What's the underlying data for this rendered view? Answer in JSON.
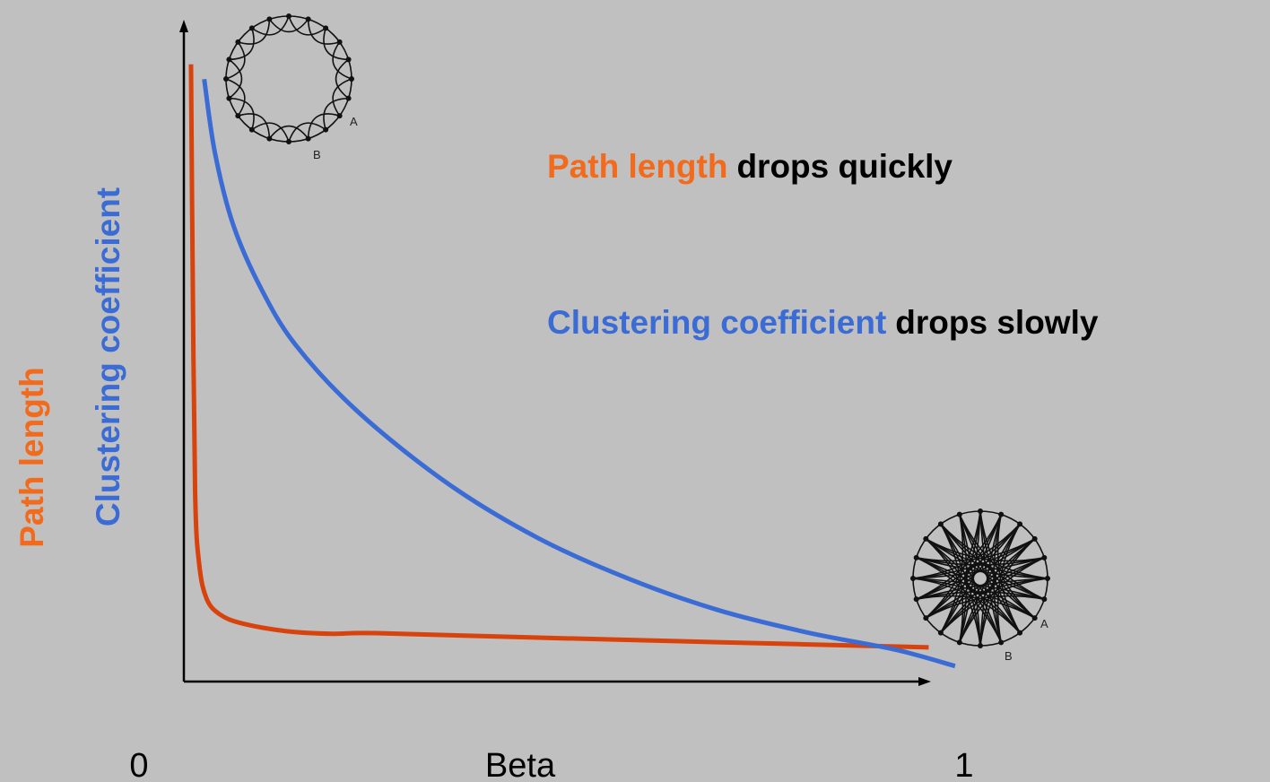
{
  "chart_data": {
    "type": "line",
    "xlabel": "Beta",
    "xlim": [
      0,
      1
    ],
    "xticks": [
      0,
      1
    ],
    "ylim": [
      0,
      1
    ],
    "series": [
      {
        "name": "Path length",
        "color": "#d8420c",
        "label_color": "#f26a1c",
        "x": [
          0.063,
          0.065,
          0.068,
          0.073,
          0.082,
          0.098,
          0.125,
          0.179,
          0.234,
          0.288,
          0.484,
          0.701,
          0.957
        ],
        "values": [
          0.956,
          0.639,
          0.292,
          0.181,
          0.128,
          0.104,
          0.09,
          0.078,
          0.074,
          0.075,
          0.068,
          0.061,
          0.053
        ]
      },
      {
        "name": "Clustering coefficient",
        "color": "#3b6bd4",
        "label_color": "#3b6bd4",
        "x": [
          0.079,
          0.092,
          0.114,
          0.147,
          0.19,
          0.266,
          0.375,
          0.484,
          0.592,
          0.701,
          0.81,
          0.918,
          0.989
        ],
        "values": [
          0.933,
          0.819,
          0.708,
          0.611,
          0.521,
          0.417,
          0.306,
          0.222,
          0.16,
          0.111,
          0.076,
          0.049,
          0.024
        ]
      }
    ],
    "annotations": [
      "drops quickly",
      "drops slowly"
    ],
    "network_labels": [
      "A",
      "B"
    ]
  }
}
